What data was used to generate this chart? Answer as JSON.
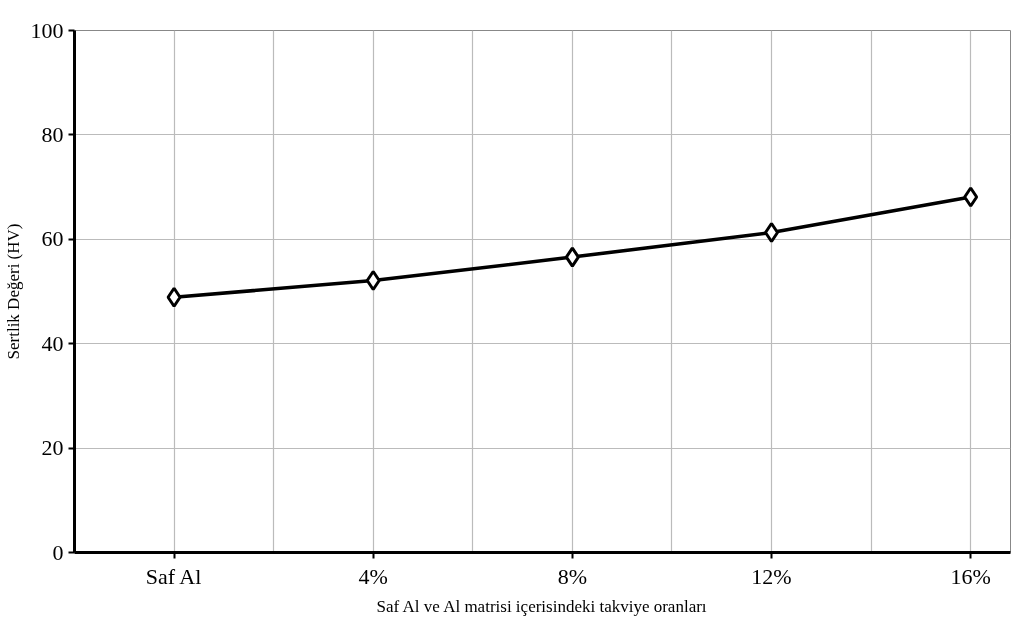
{
  "chart_data": {
    "type": "line",
    "xlabel": "Saf Al ve Al matrisi içerisindeki takviye oranları",
    "ylabel": "Sertlik Değeri (HV)",
    "categories": [
      "Saf Al",
      "4%",
      "8%",
      "12%",
      "16%"
    ],
    "series": [
      {
        "color": "#000000",
        "values": [
          48.9,
          52.1,
          56.6,
          61.3,
          68.1
        ]
      }
    ],
    "ylim": [
      0,
      100
    ],
    "yticks": [
      0,
      20,
      40,
      60,
      80,
      100
    ],
    "grid": true,
    "marker": "diamond",
    "line_style": "solid"
  }
}
